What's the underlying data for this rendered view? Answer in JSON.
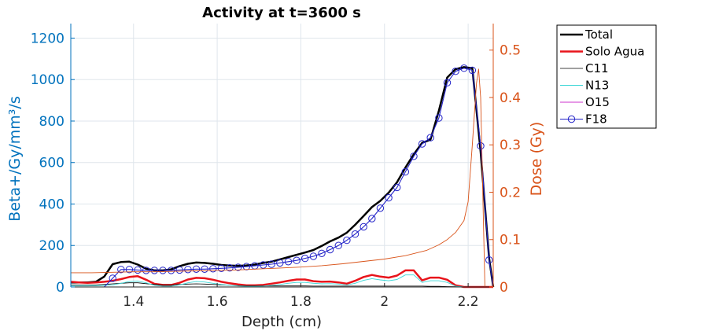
{
  "chart_data": {
    "type": "line",
    "title": "Activity at t=3600 s",
    "xlabel": "Depth (cm)",
    "ylabel_left": "Beta+/Gy/mm³/s",
    "ylabel_right": "Dose (Gy)",
    "xlim": [
      1.25,
      2.26
    ],
    "ylim_left": [
      0,
      1270
    ],
    "ylim_right": [
      0,
      0.556
    ],
    "x_ticks": [
      1.4,
      1.6,
      1.8,
      2.0,
      2.2
    ],
    "x_tick_labels": [
      "1.4",
      "1.6",
      "1.8",
      "2",
      "2.2"
    ],
    "y_left_ticks": [
      0,
      200,
      400,
      600,
      800,
      1000,
      1200
    ],
    "y_left_tick_labels": [
      "0",
      "200",
      "400",
      "600",
      "800",
      "1000",
      "1200"
    ],
    "y_right_ticks": [
      0,
      0.1,
      0.2,
      0.3,
      0.4,
      0.5
    ],
    "y_right_tick_labels": [
      "0",
      "0.1",
      "0.2",
      "0.3",
      "0.4",
      "0.5"
    ],
    "grid": true,
    "legend_position": "outside-top-right",
    "colors": {
      "left_axis": "#0072BD",
      "right_axis": "#D95319",
      "grid": "#dfe6ec"
    },
    "x": [
      1.25,
      1.27,
      1.29,
      1.31,
      1.33,
      1.35,
      1.37,
      1.39,
      1.41,
      1.43,
      1.45,
      1.47,
      1.49,
      1.51,
      1.53,
      1.55,
      1.57,
      1.59,
      1.61,
      1.63,
      1.65,
      1.67,
      1.69,
      1.71,
      1.73,
      1.75,
      1.77,
      1.79,
      1.81,
      1.83,
      1.85,
      1.87,
      1.89,
      1.91,
      1.93,
      1.95,
      1.97,
      1.99,
      2.01,
      2.03,
      2.05,
      2.07,
      2.09,
      2.11,
      2.13,
      2.15,
      2.17,
      2.19,
      2.21,
      2.23,
      2.25,
      2.26
    ],
    "series": [
      {
        "name": "Total",
        "axis": "left",
        "color": "#000000",
        "width": 2.5,
        "marker": "none",
        "y": [
          22,
          22,
          22,
          25,
          50,
          110,
          120,
          122,
          108,
          88,
          80,
          80,
          85,
          100,
          112,
          118,
          116,
          112,
          106,
          103,
          102,
          104,
          108,
          116,
          122,
          133,
          144,
          155,
          166,
          178,
          198,
          220,
          238,
          262,
          300,
          342,
          385,
          415,
          455,
          505,
          575,
          640,
          695,
          710,
          850,
          1010,
          1050,
          1060,
          1055,
          650,
          140,
          0
        ]
      },
      {
        "name": "Solo Agua",
        "axis": "left",
        "color": "#e8141b",
        "width": 2.5,
        "marker": "none",
        "y": [
          25,
          22,
          20,
          22,
          25,
          30,
          38,
          48,
          52,
          35,
          15,
          10,
          10,
          20,
          36,
          44,
          42,
          35,
          25,
          18,
          12,
          8,
          8,
          10,
          16,
          22,
          30,
          36,
          36,
          28,
          25,
          26,
          22,
          16,
          30,
          48,
          58,
          50,
          45,
          55,
          80,
          80,
          32,
          45,
          45,
          35,
          8,
          0,
          0,
          0,
          0,
          0
        ]
      },
      {
        "name": "C11",
        "axis": "left",
        "color": "#000000",
        "width": 0.8,
        "marker": "none",
        "y": [
          10,
          10,
          10,
          10,
          12,
          15,
          18,
          20,
          20,
          16,
          12,
          10,
          10,
          12,
          14,
          15,
          14,
          12,
          10,
          8,
          6,
          5,
          5,
          5,
          5,
          5,
          5,
          5,
          5,
          4,
          4,
          4,
          4,
          4,
          4,
          4,
          4,
          4,
          4,
          4,
          4,
          4,
          4,
          3,
          3,
          2,
          1,
          0,
          0,
          0,
          0,
          0
        ]
      },
      {
        "name": "N13",
        "axis": "left",
        "color": "#3ad6d6",
        "width": 0.9,
        "marker": "none",
        "y": [
          5,
          5,
          5,
          6,
          8,
          10,
          18,
          26,
          28,
          20,
          8,
          4,
          4,
          10,
          20,
          26,
          24,
          18,
          12,
          8,
          5,
          3,
          3,
          4,
          8,
          12,
          18,
          22,
          22,
          18,
          15,
          16,
          14,
          10,
          18,
          32,
          40,
          34,
          30,
          36,
          58,
          58,
          22,
          30,
          30,
          22,
          4,
          0,
          0,
          0,
          0,
          0
        ]
      },
      {
        "name": "O15",
        "axis": "left",
        "color": "#cc33cc",
        "width": 0.9,
        "marker": "none",
        "y": [
          0,
          0,
          0,
          0,
          0,
          0,
          0,
          0,
          0,
          0,
          0,
          0,
          0,
          0,
          0,
          0,
          0,
          0,
          0,
          0,
          0,
          0,
          0,
          0,
          0,
          0,
          0,
          0,
          0,
          0,
          0,
          0,
          0,
          0,
          0,
          0,
          0,
          0,
          0,
          0,
          0,
          0,
          0,
          0,
          0,
          0,
          0,
          0,
          0,
          0,
          0,
          0
        ]
      },
      {
        "name": "F18",
        "axis": "left",
        "color": "#2323c8",
        "width": 1.1,
        "marker": "circle",
        "marker_step": 1,
        "y": [
          0,
          0,
          0,
          0,
          0,
          42,
          84,
          84,
          82,
          80,
          80,
          80,
          80,
          82,
          84,
          86,
          86,
          88,
          90,
          92,
          95,
          98,
          102,
          106,
          110,
          116,
          122,
          128,
          138,
          148,
          162,
          180,
          200,
          225,
          255,
          290,
          330,
          380,
          430,
          480,
          555,
          630,
          690,
          720,
          815,
          985,
          1040,
          1055,
          1045,
          680,
          130,
          0
        ]
      },
      {
        "name": "Dose",
        "axis": "right",
        "color": "#D95319",
        "width": 0.9,
        "marker": "none",
        "points": [
          [
            1.25,
            0.03
          ],
          [
            1.3,
            0.03
          ],
          [
            1.35,
            0.031
          ],
          [
            1.4,
            0.032
          ],
          [
            1.45,
            0.032
          ],
          [
            1.5,
            0.033
          ],
          [
            1.55,
            0.034
          ],
          [
            1.6,
            0.035
          ],
          [
            1.65,
            0.036
          ],
          [
            1.7,
            0.038
          ],
          [
            1.75,
            0.04
          ],
          [
            1.8,
            0.042
          ],
          [
            1.85,
            0.045
          ],
          [
            1.9,
            0.049
          ],
          [
            1.95,
            0.054
          ],
          [
            2.0,
            0.059
          ],
          [
            2.05,
            0.066
          ],
          [
            2.1,
            0.077
          ],
          [
            2.13,
            0.089
          ],
          [
            2.15,
            0.1
          ],
          [
            2.17,
            0.115
          ],
          [
            2.19,
            0.14
          ],
          [
            2.2,
            0.18
          ],
          [
            2.21,
            0.3
          ],
          [
            2.22,
            0.43
          ],
          [
            2.225,
            0.46
          ],
          [
            2.23,
            0.4
          ],
          [
            2.235,
            0.2
          ],
          [
            2.24,
            0.0
          ],
          [
            2.26,
            0.0
          ]
        ]
      }
    ],
    "legend": [
      "Total",
      "Solo Agua",
      "C11",
      "N13",
      "O15",
      "F18"
    ]
  }
}
